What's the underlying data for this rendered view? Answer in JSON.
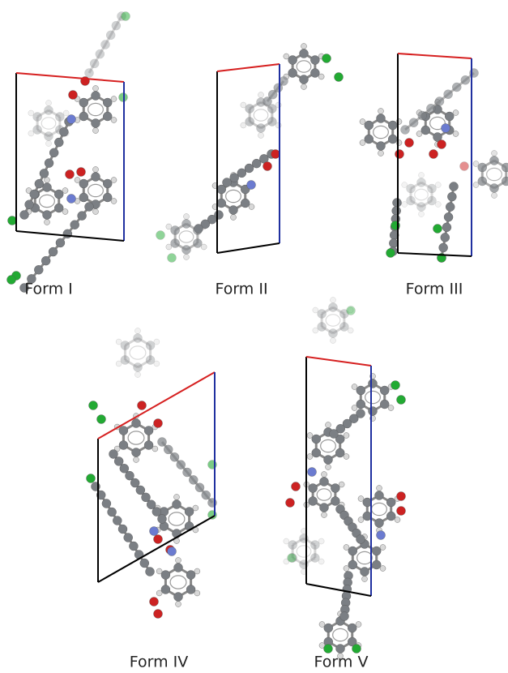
{
  "panels": [
    {
      "label": "Form I"
    },
    {
      "label": "Form II"
    },
    {
      "label": "Form III"
    },
    {
      "label": "Form IV"
    },
    {
      "label": "Form V"
    }
  ]
}
